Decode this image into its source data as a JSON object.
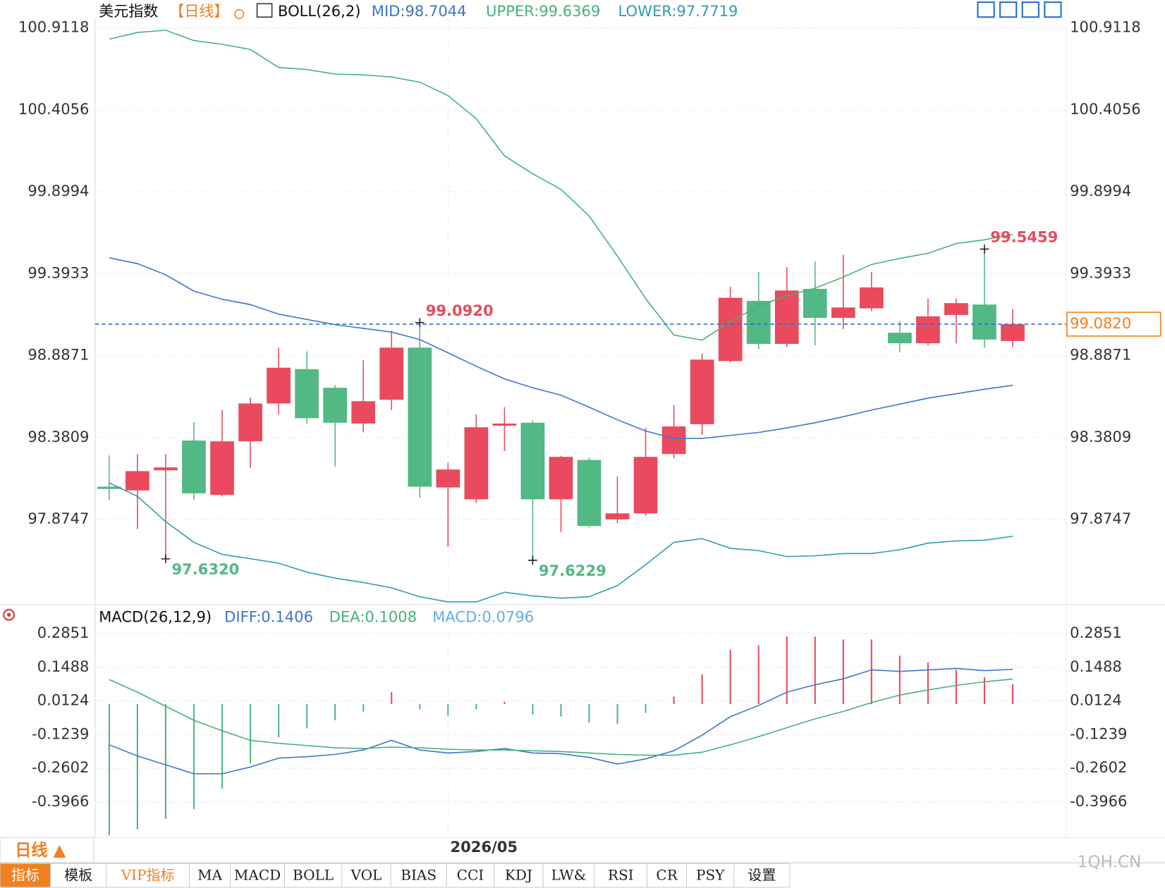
{
  "chart_data": [
    {
      "type": "candlestick",
      "title": "美元指数",
      "period": "【日线】",
      "indicator": "BOLL(26,2)",
      "categories": [
        null,
        null,
        null,
        null,
        null,
        null,
        null,
        null,
        null,
        null,
        null,
        null,
        "2026/05",
        null,
        null,
        null,
        null,
        null,
        null,
        null,
        null,
        null,
        null,
        null,
        null,
        null,
        null,
        null,
        null,
        null,
        null,
        null,
        null
      ],
      "open": [
        98.078,
        98.055,
        98.179,
        98.363,
        98.027,
        98.358,
        98.592,
        98.804,
        98.689,
        98.468,
        98.615,
        98.937,
        98.073,
        98.0,
        98.455,
        98.473,
        98.0,
        98.243,
        97.876,
        97.913,
        98.28,
        98.464,
        98.854,
        99.226,
        98.96,
        99.3,
        99.121,
        99.18,
        99.029,
        98.964,
        99.139,
        99.203,
        98.978
      ],
      "high": [
        98.271,
        98.28,
        98.28,
        98.478,
        98.551,
        98.629,
        98.937,
        98.914,
        98.707,
        98.859,
        99.042,
        99.092,
        98.225,
        98.524,
        98.569,
        98.487,
        98.267,
        98.257,
        98.142,
        98.441,
        98.583,
        98.9,
        99.313,
        99.405,
        99.433,
        99.47,
        99.511,
        99.405,
        99.098,
        99.24,
        99.24,
        99.5459,
        99.176
      ],
      "low": [
        97.995,
        97.816,
        97.632,
        97.995,
        98.018,
        98.193,
        98.524,
        98.468,
        98.202,
        98.413,
        98.551,
        98.009,
        97.706,
        97.977,
        98.298,
        97.6229,
        97.798,
        97.825,
        97.853,
        97.899,
        98.253,
        98.399,
        98.845,
        98.928,
        98.941,
        98.951,
        99.052,
        99.162,
        98.909,
        98.951,
        98.964,
        98.937,
        98.941
      ],
      "close": [
        98.064,
        98.174,
        98.197,
        98.037,
        98.358,
        98.592,
        98.813,
        98.501,
        98.473,
        98.606,
        98.937,
        98.078,
        98.184,
        98.445,
        98.468,
        98.0,
        98.262,
        97.835,
        97.913,
        98.262,
        98.45,
        98.863,
        99.245,
        98.96,
        99.29,
        99.121,
        99.185,
        99.309,
        98.964,
        99.13,
        99.212,
        98.987,
        99.082
      ],
      "up_color": "#e94a5d",
      "down_color": "#52b884",
      "ylim": [
        97.36,
        100.97
      ],
      "yticks": [
        100.9118,
        100.4056,
        99.8994,
        99.3933,
        98.8871,
        98.3809,
        97.8747
      ],
      "grid": true,
      "series": [
        {
          "name": "MID:98.7044",
          "color": "#3b76cc",
          "values": [
            99.492,
            99.456,
            99.387,
            99.286,
            99.236,
            99.203,
            99.144,
            99.111,
            99.079,
            99.056,
            99.033,
            98.987,
            98.905,
            98.822,
            98.744,
            98.689,
            98.643,
            98.569,
            98.491,
            98.422,
            98.376,
            98.376,
            98.395,
            98.413,
            98.441,
            98.473,
            98.51,
            98.551,
            98.588,
            98.625,
            98.652,
            98.68,
            98.7044
          ]
        },
        {
          "name": "UPPER:99.6369",
          "color": "#45b27a",
          "values": [
            100.843,
            100.884,
            100.898,
            100.834,
            100.811,
            100.779,
            100.668,
            100.655,
            100.627,
            100.622,
            100.609,
            100.577,
            100.494,
            100.351,
            100.122,
            100.011,
            99.915,
            99.75,
            99.502,
            99.24,
            99.015,
            98.983,
            99.097,
            99.194,
            99.258,
            99.304,
            99.373,
            99.451,
            99.488,
            99.52,
            99.58,
            99.603,
            99.6369
          ]
        },
        {
          "name": "LOWER:97.7719",
          "color": "#2e9bb5",
          "values": [
            98.101,
            98.018,
            97.862,
            97.734,
            97.66,
            97.633,
            97.605,
            97.55,
            97.513,
            97.486,
            97.453,
            97.398,
            97.366,
            97.366,
            97.426,
            97.403,
            97.389,
            97.398,
            97.467,
            97.596,
            97.734,
            97.757,
            97.697,
            97.683,
            97.646,
            97.651,
            97.665,
            97.665,
            97.688,
            97.729,
            97.743,
            97.747,
            97.7719
          ]
        }
      ],
      "annotations": [
        {
          "value": 97.632,
          "label": "97.6320"
        },
        {
          "value": 99.092,
          "label": "99.0920"
        },
        {
          "value": 97.6229,
          "label": "97.6229"
        },
        {
          "value": 99.5459,
          "label": "99.5459"
        }
      ],
      "last_price": {
        "value": 99.082,
        "label": "99.0820"
      }
    },
    {
      "type": "macd",
      "title": "MACD(26,12,9)",
      "ylim": [
        -0.531,
        0.31
      ],
      "yticks": [
        0.2851,
        0.1488,
        0.0124,
        -0.1239,
        -0.2602,
        -0.3966
      ],
      "grid": true,
      "up_color": "#e94a5d",
      "down_color": "#52b884",
      "series": [
        {
          "name": "DIFF:0.1406",
          "color": "#3b76cc",
          "mark": "line",
          "values": [
            -0.165,
            -0.21,
            -0.246,
            -0.282,
            -0.282,
            -0.255,
            -0.219,
            -0.213,
            -0.204,
            -0.186,
            -0.147,
            -0.186,
            -0.198,
            -0.192,
            -0.18,
            -0.198,
            -0.201,
            -0.216,
            -0.243,
            -0.222,
            -0.189,
            -0.126,
            -0.051,
            -0.006,
            0.048,
            0.078,
            0.102,
            0.138,
            0.132,
            0.138,
            0.144,
            0.135,
            0.1406
          ]
        },
        {
          "name": "DEA:0.1008",
          "color": "#45b27a",
          "mark": "line",
          "values": [
            0.099,
            0.048,
            -0.009,
            -0.066,
            -0.108,
            -0.147,
            -0.159,
            -0.168,
            -0.177,
            -0.18,
            -0.174,
            -0.177,
            -0.183,
            -0.186,
            -0.186,
            -0.189,
            -0.192,
            -0.198,
            -0.204,
            -0.207,
            -0.207,
            -0.195,
            -0.165,
            -0.132,
            -0.096,
            -0.06,
            -0.03,
            0.006,
            0.036,
            0.057,
            0.075,
            0.09,
            0.1008
          ]
        },
        {
          "name": "MACD:0.0796",
          "color": "#5fb0e8",
          "mark": "bar",
          "values": [
            -0.531,
            -0.507,
            -0.465,
            -0.426,
            -0.342,
            -0.24,
            -0.135,
            -0.099,
            -0.066,
            -0.03,
            0.048,
            -0.021,
            -0.048,
            -0.021,
            0.009,
            -0.042,
            -0.051,
            -0.075,
            -0.081,
            -0.036,
            0.03,
            0.12,
            0.219,
            0.237,
            0.273,
            0.273,
            0.261,
            0.261,
            0.195,
            0.168,
            0.138,
            0.108,
            0.0796
          ]
        }
      ]
    }
  ],
  "toolbar": {
    "period_label": "日线 ▲",
    "tabs": [
      "指标",
      "模板",
      "VIP指标",
      "MA",
      "MACD",
      "BOLL",
      "VOL",
      "BIAS",
      "CCI",
      "KDJ",
      "LW&",
      "RSI",
      "CR",
      "PSY",
      "设置"
    ],
    "watermark": "1QH.CN"
  }
}
